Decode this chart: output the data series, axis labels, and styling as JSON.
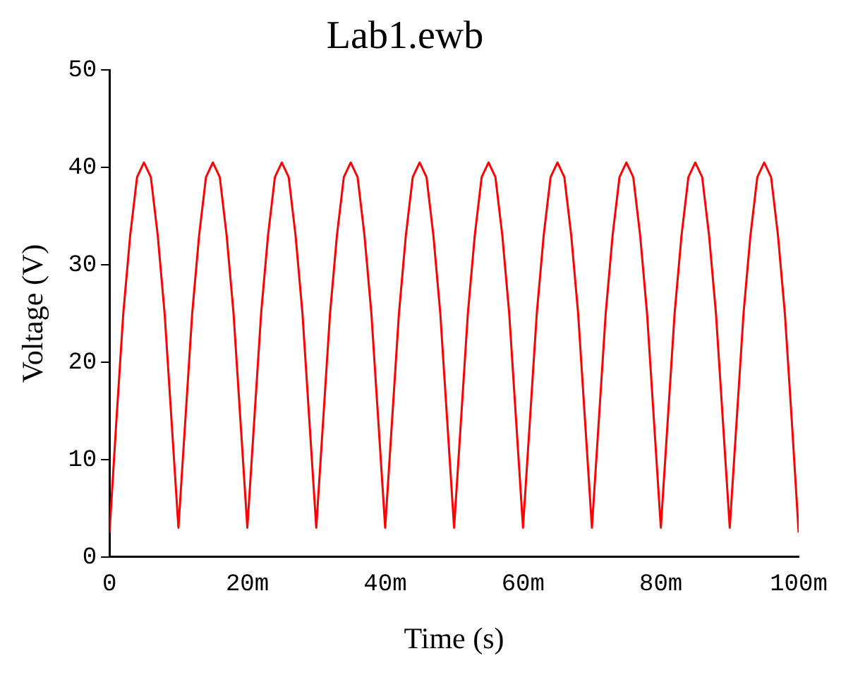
{
  "chart_data": {
    "type": "line",
    "title": "Lab1.ewb",
    "xlabel": "Time (s)",
    "ylabel": "Voltage (V)",
    "xlim": [
      0,
      100
    ],
    "xticks": [
      0,
      {
        "value": 20,
        "label": "20m"
      },
      {
        "value": 40,
        "label": "40m"
      },
      {
        "value": 60,
        "label": "60m"
      },
      {
        "value": 80,
        "label": "80m"
      },
      {
        "value": 100,
        "label": "100m"
      }
    ],
    "ylim": [
      0,
      50
    ],
    "yticks": [
      0,
      10,
      20,
      30,
      40,
      50
    ],
    "grid": false,
    "legend": false,
    "x": [
      0,
      1,
      2,
      3,
      4,
      5,
      6,
      7,
      8,
      9,
      10,
      11,
      12,
      13,
      14,
      15,
      16,
      17,
      18,
      19,
      20,
      21,
      22,
      23,
      24,
      25,
      26,
      27,
      28,
      29,
      30,
      31,
      32,
      33,
      34,
      35,
      36,
      37,
      38,
      39,
      40,
      41,
      42,
      43,
      44,
      45,
      46,
      47,
      48,
      49,
      50,
      51,
      52,
      53,
      54,
      55,
      56,
      57,
      58,
      59,
      60,
      61,
      62,
      63,
      64,
      65,
      66,
      67,
      68,
      69,
      70,
      71,
      72,
      73,
      74,
      75,
      76,
      77,
      78,
      79,
      80,
      81,
      82,
      83,
      84,
      85,
      86,
      87,
      88,
      89,
      90,
      91,
      92,
      93,
      94,
      95,
      96,
      97,
      98,
      99,
      100
    ],
    "series": [
      {
        "color": "#ff0000",
        "values": [
          2.5,
          14,
          25,
          33,
          39,
          40.5,
          39,
          33,
          25,
          14,
          3,
          14,
          25,
          33,
          39,
          40.5,
          39,
          33,
          25,
          14,
          3,
          14,
          25,
          33,
          39,
          40.5,
          39,
          33,
          25,
          14,
          3,
          14,
          25,
          33,
          39,
          40.5,
          39,
          33,
          25,
          14,
          3,
          14,
          25,
          33,
          39,
          40.5,
          39,
          33,
          25,
          14,
          3,
          14,
          25,
          33,
          39,
          40.5,
          39,
          33,
          25,
          14,
          3,
          14,
          25,
          33,
          39,
          40.5,
          39,
          33,
          25,
          14,
          3,
          14,
          25,
          33,
          39,
          40.5,
          39,
          33,
          25,
          14,
          3,
          14,
          25,
          33,
          39,
          40.5,
          39,
          33,
          25,
          14,
          3,
          14,
          25,
          33,
          39,
          40.5,
          39,
          33,
          25,
          14,
          2.5
        ]
      }
    ]
  }
}
